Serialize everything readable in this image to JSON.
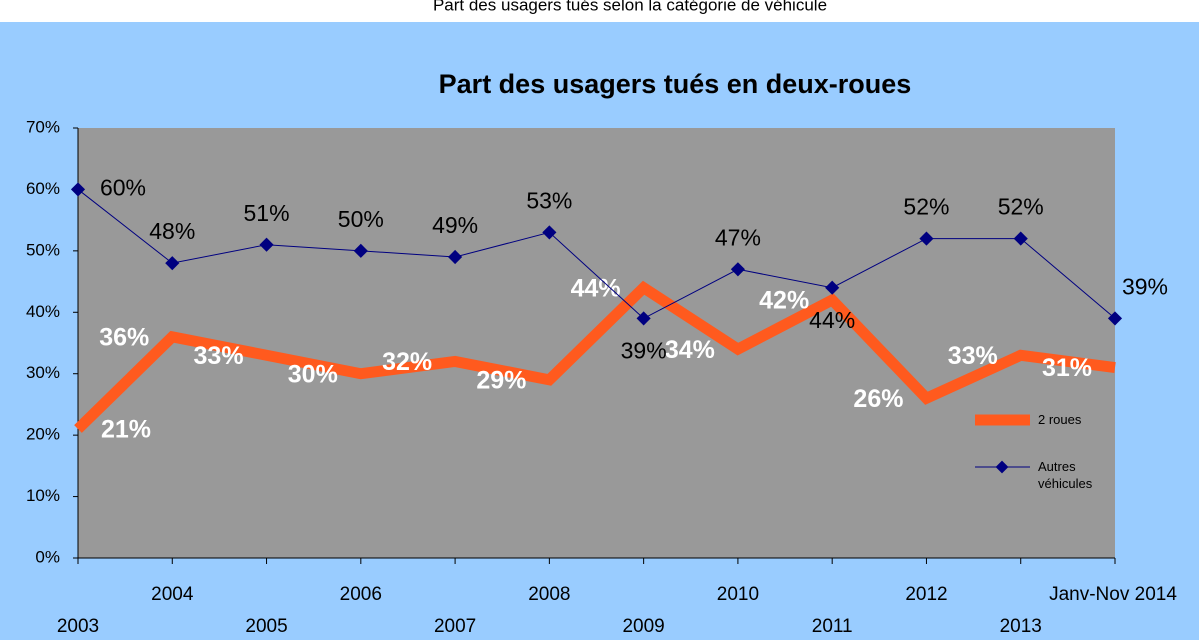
{
  "header": {
    "title": "Part des usagers tués selon la catégorie de véhicule"
  },
  "chart_data": {
    "type": "line",
    "title": "Part des usagers tués en deux-roues",
    "categories": [
      "2003",
      "2004",
      "2005",
      "2006",
      "2007",
      "2008",
      "2009",
      "2010",
      "2011",
      "2012",
      "2013",
      "Janv-Nov 2014"
    ],
    "series": [
      {
        "name": "2 roues",
        "color": "#ff5a1e",
        "values": [
          21,
          36,
          33,
          30,
          32,
          29,
          44,
          34,
          42,
          26,
          33,
          31
        ],
        "value_labels": [
          "21%",
          "36%",
          "33%",
          "30%",
          "32%",
          "29%",
          "44%",
          "34%",
          "42%",
          "26%",
          "33%",
          "31%"
        ]
      },
      {
        "name": "Autres véhicules",
        "color": "#000080",
        "values": [
          60,
          48,
          51,
          50,
          49,
          53,
          39,
          47,
          44,
          52,
          52,
          39
        ],
        "value_labels": [
          "60%",
          "48%",
          "51%",
          "50%",
          "49%",
          "53%",
          "39%",
          "47%",
          "44%",
          "52%",
          "52%",
          "39%"
        ]
      }
    ],
    "ylim": [
      0,
      70
    ],
    "yticks": [
      {
        "value": 0,
        "label": "0%"
      },
      {
        "value": 10,
        "label": "10%"
      },
      {
        "value": 20,
        "label": "20%"
      },
      {
        "value": 30,
        "label": "30%"
      },
      {
        "value": 40,
        "label": "40%"
      },
      {
        "value": 50,
        "label": "50%"
      },
      {
        "value": 60,
        "label": "60%"
      },
      {
        "value": 70,
        "label": "70%"
      }
    ],
    "legend": "right"
  }
}
